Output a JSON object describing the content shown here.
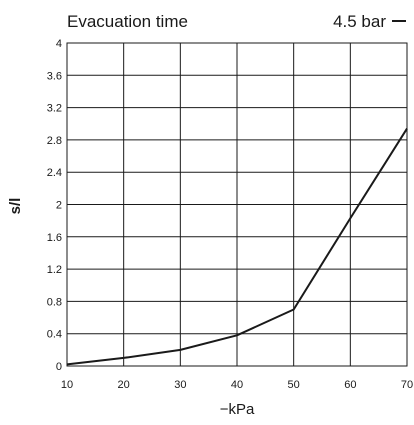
{
  "chart_data": {
    "type": "line",
    "title": "Evacuation time",
    "xlabel": "−kPa",
    "ylabel": "s/l",
    "xlim": [
      10,
      70
    ],
    "ylim": [
      0,
      4
    ],
    "grid": true,
    "legend_position": "top-right",
    "x_ticks": [
      "10",
      "20",
      "30",
      "40",
      "50",
      "60",
      "70"
    ],
    "y_ticks": [
      "0",
      "0.4",
      "0.8",
      "1.2",
      "1.6",
      "2",
      "2.4",
      "2.8",
      "3.2",
      "3.6",
      "4"
    ],
    "series": [
      {
        "name": "4.5 bar",
        "color": "#1a1a1a",
        "x": [
          10,
          20,
          30,
          40,
          50,
          60,
          70
        ],
        "y": [
          0.02,
          0.1,
          0.2,
          0.38,
          0.7,
          1.83,
          2.94
        ]
      }
    ]
  }
}
